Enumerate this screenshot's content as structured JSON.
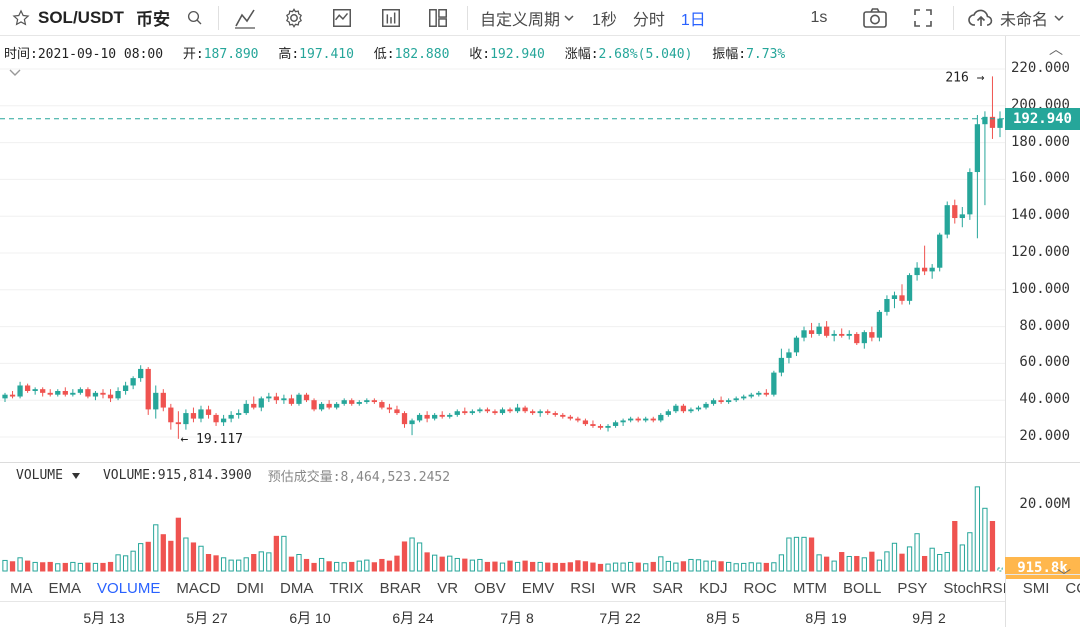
{
  "toolbar": {
    "symbol": "SOL/USDT",
    "exchange": "币安",
    "period_menu": "自定义周期",
    "intervals": [
      "1秒",
      "分时",
      "1日"
    ],
    "active_interval": "1日",
    "replay": "1s",
    "layout_name": "未命名"
  },
  "info": {
    "time_label": "时间:",
    "time_value": "2021-09-10 08:00",
    "open_label": "开:",
    "open_value": "187.890",
    "high_label": "高:",
    "high_value": "197.410",
    "low_label": "低:",
    "low_value": "182.880",
    "close_label": "收:",
    "close_value": "192.940",
    "change_label": "涨幅:",
    "change_value": "2.68%(5.040)",
    "amplitude_label": "振幅:",
    "amplitude_value": "7.73%"
  },
  "price_axis": {
    "ticks": [
      "220.000",
      "200.000",
      "180.000",
      "160.000",
      "140.000",
      "120.000",
      "100.000",
      "80.000",
      "60.000",
      "40.000",
      "20.000"
    ],
    "last_price": "192.940"
  },
  "annotations": {
    "high_marker": "216 →",
    "low_marker": "← 19.117"
  },
  "volume": {
    "name": "VOLUME",
    "value_label": "VOLUME:915,814.3900",
    "estimate_label": "预估成交量:8,464,523.2452",
    "axis_tick": "20.00M",
    "current_tag": "915.8k"
  },
  "indicators": [
    "MA",
    "EMA",
    "VOLUME",
    "MACD",
    "DMI",
    "DMA",
    "TRIX",
    "BRAR",
    "VR",
    "OBV",
    "EMV",
    "RSI",
    "WR",
    "SAR",
    "KDJ",
    "ROC",
    "MTM",
    "BOLL",
    "PSY",
    "StochRSI",
    "SMI",
    "CCI"
  ],
  "active_indicator": "VOLUME",
  "time_axis": [
    "5月 13",
    "5月 27",
    "6月 10",
    "6月 24",
    "7月 8",
    "7月 22",
    "8月 5",
    "8月 19",
    "9月 2"
  ],
  "colors": {
    "up": "#26a69a",
    "down": "#ef5350",
    "accent": "#2962ff"
  },
  "chart_data": {
    "type": "candlestick",
    "title": "SOL/USDT",
    "y_range": [
      10,
      225
    ],
    "volume_range_millions": [
      0,
      26
    ],
    "candles": [
      {
        "o": 41,
        "h": 44,
        "l": 39,
        "c": 43
      },
      {
        "o": 43,
        "h": 45,
        "l": 41,
        "c": 42
      },
      {
        "o": 42,
        "h": 50,
        "l": 41,
        "c": 48
      },
      {
        "o": 48,
        "h": 49,
        "l": 44,
        "c": 45
      },
      {
        "o": 45,
        "h": 47,
        "l": 43,
        "c": 46
      },
      {
        "o": 46,
        "h": 47,
        "l": 42,
        "c": 44
      },
      {
        "o": 44,
        "h": 46,
        "l": 42,
        "c": 43
      },
      {
        "o": 43,
        "h": 46,
        "l": 42,
        "c": 45
      },
      {
        "o": 45,
        "h": 47,
        "l": 42,
        "c": 43
      },
      {
        "o": 43,
        "h": 46,
        "l": 42,
        "c": 44
      },
      {
        "o": 44,
        "h": 47,
        "l": 43,
        "c": 46
      },
      {
        "o": 46,
        "h": 47,
        "l": 41,
        "c": 42
      },
      {
        "o": 42,
        "h": 45,
        "l": 40,
        "c": 44
      },
      {
        "o": 44,
        "h": 46,
        "l": 41,
        "c": 43
      },
      {
        "o": 43,
        "h": 46,
        "l": 39,
        "c": 41
      },
      {
        "o": 41,
        "h": 47,
        "l": 40,
        "c": 45
      },
      {
        "o": 45,
        "h": 50,
        "l": 43,
        "c": 48
      },
      {
        "o": 48,
        "h": 53,
        "l": 46,
        "c": 52
      },
      {
        "o": 52,
        "h": 59,
        "l": 50,
        "c": 57
      },
      {
        "o": 57,
        "h": 58,
        "l": 32,
        "c": 35
      },
      {
        "o": 35,
        "h": 48,
        "l": 30,
        "c": 44
      },
      {
        "o": 44,
        "h": 46,
        "l": 34,
        "c": 36
      },
      {
        "o": 36,
        "h": 38,
        "l": 24,
        "c": 28
      },
      {
        "o": 28,
        "h": 34,
        "l": 19,
        "c": 27
      },
      {
        "o": 27,
        "h": 35,
        "l": 24,
        "c": 33
      },
      {
        "o": 33,
        "h": 36,
        "l": 28,
        "c": 30
      },
      {
        "o": 30,
        "h": 37,
        "l": 28,
        "c": 35
      },
      {
        "o": 35,
        "h": 37,
        "l": 30,
        "c": 32
      },
      {
        "o": 32,
        "h": 33,
        "l": 26,
        "c": 28
      },
      {
        "o": 28,
        "h": 32,
        "l": 26,
        "c": 30
      },
      {
        "o": 30,
        "h": 34,
        "l": 28,
        "c": 32
      },
      {
        "o": 32,
        "h": 35,
        "l": 30,
        "c": 33
      },
      {
        "o": 33,
        "h": 40,
        "l": 32,
        "c": 38
      },
      {
        "o": 38,
        "h": 42,
        "l": 35,
        "c": 36
      },
      {
        "o": 36,
        "h": 42,
        "l": 34,
        "c": 41
      },
      {
        "o": 41,
        "h": 44,
        "l": 39,
        "c": 42
      },
      {
        "o": 42,
        "h": 44,
        "l": 38,
        "c": 40
      },
      {
        "o": 40,
        "h": 43,
        "l": 38,
        "c": 41
      },
      {
        "o": 41,
        "h": 43,
        "l": 37,
        "c": 38
      },
      {
        "o": 38,
        "h": 44,
        "l": 37,
        "c": 43
      },
      {
        "o": 43,
        "h": 44,
        "l": 39,
        "c": 40
      },
      {
        "o": 40,
        "h": 41,
        "l": 34,
        "c": 35
      },
      {
        "o": 35,
        "h": 39,
        "l": 34,
        "c": 38
      },
      {
        "o": 38,
        "h": 40,
        "l": 35,
        "c": 36
      },
      {
        "o": 36,
        "h": 39,
        "l": 35,
        "c": 38
      },
      {
        "o": 38,
        "h": 41,
        "l": 37,
        "c": 40
      },
      {
        "o": 40,
        "h": 41,
        "l": 37,
        "c": 38
      },
      {
        "o": 38,
        "h": 40,
        "l": 37,
        "c": 39
      },
      {
        "o": 39,
        "h": 41,
        "l": 38,
        "c": 40
      },
      {
        "o": 40,
        "h": 41,
        "l": 38,
        "c": 39
      },
      {
        "o": 39,
        "h": 40,
        "l": 35,
        "c": 36
      },
      {
        "o": 36,
        "h": 38,
        "l": 33,
        "c": 35
      },
      {
        "o": 35,
        "h": 37,
        "l": 32,
        "c": 33
      },
      {
        "o": 33,
        "h": 34,
        "l": 25,
        "c": 27
      },
      {
        "o": 27,
        "h": 30,
        "l": 21,
        "c": 29
      },
      {
        "o": 29,
        "h": 33,
        "l": 28,
        "c": 32
      },
      {
        "o": 32,
        "h": 34,
        "l": 28,
        "c": 30
      },
      {
        "o": 30,
        "h": 33,
        "l": 29,
        "c": 32
      },
      {
        "o": 32,
        "h": 34,
        "l": 30,
        "c": 31
      },
      {
        "o": 31,
        "h": 33,
        "l": 30,
        "c": 32
      },
      {
        "o": 32,
        "h": 35,
        "l": 31,
        "c": 34
      },
      {
        "o": 34,
        "h": 36,
        "l": 32,
        "c": 33
      },
      {
        "o": 33,
        "h": 35,
        "l": 32,
        "c": 34
      },
      {
        "o": 34,
        "h": 36,
        "l": 33,
        "c": 35
      },
      {
        "o": 35,
        "h": 36,
        "l": 33,
        "c": 34
      },
      {
        "o": 34,
        "h": 35,
        "l": 32,
        "c": 33
      },
      {
        "o": 33,
        "h": 36,
        "l": 32,
        "c": 35
      },
      {
        "o": 35,
        "h": 36,
        "l": 33,
        "c": 34
      },
      {
        "o": 34,
        "h": 38,
        "l": 33,
        "c": 36
      },
      {
        "o": 36,
        "h": 37,
        "l": 33,
        "c": 34
      },
      {
        "o": 34,
        "h": 35,
        "l": 32,
        "c": 33
      },
      {
        "o": 33,
        "h": 35,
        "l": 31,
        "c": 34
      },
      {
        "o": 34,
        "h": 35,
        "l": 32,
        "c": 33
      },
      {
        "o": 33,
        "h": 34,
        "l": 31,
        "c": 32
      },
      {
        "o": 32,
        "h": 33,
        "l": 30,
        "c": 31
      },
      {
        "o": 31,
        "h": 32,
        "l": 29,
        "c": 30
      },
      {
        "o": 30,
        "h": 31,
        "l": 28,
        "c": 29
      },
      {
        "o": 29,
        "h": 30,
        "l": 26,
        "c": 27
      },
      {
        "o": 27,
        "h": 29,
        "l": 25,
        "c": 26
      },
      {
        "o": 26,
        "h": 27,
        "l": 24,
        "c": 25
      },
      {
        "o": 25,
        "h": 27,
        "l": 23,
        "c": 26
      },
      {
        "o": 26,
        "h": 29,
        "l": 25,
        "c": 28
      },
      {
        "o": 28,
        "h": 30,
        "l": 26,
        "c": 29
      },
      {
        "o": 29,
        "h": 31,
        "l": 28,
        "c": 30
      },
      {
        "o": 30,
        "h": 31,
        "l": 28,
        "c": 29
      },
      {
        "o": 29,
        "h": 31,
        "l": 28,
        "c": 30
      },
      {
        "o": 30,
        "h": 31,
        "l": 28,
        "c": 29
      },
      {
        "o": 29,
        "h": 33,
        "l": 28,
        "c": 32
      },
      {
        "o": 32,
        "h": 35,
        "l": 31,
        "c": 34
      },
      {
        "o": 34,
        "h": 38,
        "l": 33,
        "c": 37
      },
      {
        "o": 37,
        "h": 38,
        "l": 33,
        "c": 34
      },
      {
        "o": 34,
        "h": 36,
        "l": 33,
        "c": 35
      },
      {
        "o": 35,
        "h": 37,
        "l": 34,
        "c": 36
      },
      {
        "o": 36,
        "h": 39,
        "l": 35,
        "c": 38
      },
      {
        "o": 38,
        "h": 41,
        "l": 37,
        "c": 40
      },
      {
        "o": 40,
        "h": 42,
        "l": 38,
        "c": 39
      },
      {
        "o": 39,
        "h": 41,
        "l": 38,
        "c": 40
      },
      {
        "o": 40,
        "h": 42,
        "l": 39,
        "c": 41
      },
      {
        "o": 41,
        "h": 43,
        "l": 40,
        "c": 42
      },
      {
        "o": 42,
        "h": 44,
        "l": 41,
        "c": 43
      },
      {
        "o": 43,
        "h": 45,
        "l": 42,
        "c": 44
      },
      {
        "o": 44,
        "h": 46,
        "l": 42,
        "c": 43
      },
      {
        "o": 43,
        "h": 56,
        "l": 42,
        "c": 55
      },
      {
        "o": 55,
        "h": 68,
        "l": 53,
        "c": 63
      },
      {
        "o": 63,
        "h": 68,
        "l": 60,
        "c": 66
      },
      {
        "o": 66,
        "h": 75,
        "l": 64,
        "c": 74
      },
      {
        "o": 74,
        "h": 80,
        "l": 72,
        "c": 78
      },
      {
        "o": 78,
        "h": 82,
        "l": 74,
        "c": 76
      },
      {
        "o": 76,
        "h": 82,
        "l": 75,
        "c": 80
      },
      {
        "o": 80,
        "h": 83,
        "l": 74,
        "c": 75
      },
      {
        "o": 75,
        "h": 78,
        "l": 72,
        "c": 76
      },
      {
        "o": 76,
        "h": 79,
        "l": 74,
        "c": 75
      },
      {
        "o": 75,
        "h": 78,
        "l": 73,
        "c": 76
      },
      {
        "o": 76,
        "h": 77,
        "l": 70,
        "c": 71
      },
      {
        "o": 71,
        "h": 78,
        "l": 68,
        "c": 77
      },
      {
        "o": 77,
        "h": 80,
        "l": 72,
        "c": 74
      },
      {
        "o": 74,
        "h": 89,
        "l": 72,
        "c": 88
      },
      {
        "o": 88,
        "h": 97,
        "l": 86,
        "c": 95
      },
      {
        "o": 95,
        "h": 99,
        "l": 90,
        "c": 97
      },
      {
        "o": 97,
        "h": 103,
        "l": 92,
        "c": 94
      },
      {
        "o": 94,
        "h": 109,
        "l": 92,
        "c": 108
      },
      {
        "o": 108,
        "h": 115,
        "l": 105,
        "c": 112
      },
      {
        "o": 112,
        "h": 124,
        "l": 108,
        "c": 110
      },
      {
        "o": 110,
        "h": 114,
        "l": 106,
        "c": 112
      },
      {
        "o": 112,
        "h": 131,
        "l": 110,
        "c": 130
      },
      {
        "o": 130,
        "h": 148,
        "l": 128,
        "c": 146
      },
      {
        "o": 146,
        "h": 149,
        "l": 136,
        "c": 139
      },
      {
        "o": 139,
        "h": 145,
        "l": 134,
        "c": 141
      },
      {
        "o": 141,
        "h": 166,
        "l": 138,
        "c": 164
      },
      {
        "o": 164,
        "h": 195,
        "l": 128,
        "c": 190
      },
      {
        "o": 190,
        "h": 197,
        "l": 146,
        "c": 194
      },
      {
        "o": 194,
        "h": 216,
        "l": 182,
        "c": 188
      },
      {
        "o": 188,
        "h": 197,
        "l": 183,
        "c": 193
      }
    ],
    "volumes_millions": [
      3.2,
      2.8,
      4.0,
      3.0,
      2.6,
      2.5,
      2.6,
      2.2,
      2.3,
      2.6,
      2.3,
      2.4,
      2.3,
      2.3,
      2.6,
      4.9,
      4.6,
      6.0,
      8.3,
      8.7,
      14.0,
      11.0,
      9.0,
      16.0,
      10.0,
      8.5,
      7.5,
      5.0,
      4.6,
      4.0,
      3.3,
      3.3,
      4.0,
      5.0,
      5.8,
      5.5,
      10.5,
      10.5,
      4.2,
      5.0,
      3.5,
      2.3,
      3.8,
      2.8,
      2.6,
      2.5,
      2.6,
      3.0,
      3.3,
      2.5,
      3.5,
      3.0,
      4.5,
      8.8,
      10.0,
      8.5,
      5.5,
      4.8,
      4.2,
      4.5,
      3.8,
      3.6,
      3.3,
      3.5,
      2.6,
      2.7,
      2.4,
      3.0,
      2.6,
      3.0,
      2.6,
      2.6,
      2.4,
      2.3,
      2.3,
      2.5,
      3.1,
      2.8,
      2.4,
      2.0,
      2.1,
      2.4,
      2.4,
      2.6,
      2.4,
      2.2,
      2.6,
      4.3,
      2.9,
      2.4,
      2.8,
      3.5,
      3.4,
      3.0,
      3.0,
      2.8,
      2.6,
      2.2,
      2.3,
      2.5,
      2.4,
      2.3,
      2.5,
      4.9,
      10.0,
      10.2,
      10.2,
      10.0,
      4.9,
      4.2,
      3.0,
      5.6,
      4.4,
      4.4,
      4.0,
      5.7,
      3.3,
      5.8,
      8.4,
      5.1,
      7.3,
      11.3,
      4.4,
      6.9,
      5.0,
      5.6,
      15.0,
      7.9,
      11.6,
      25.5,
      19.0,
      15.0,
      0.9
    ]
  }
}
